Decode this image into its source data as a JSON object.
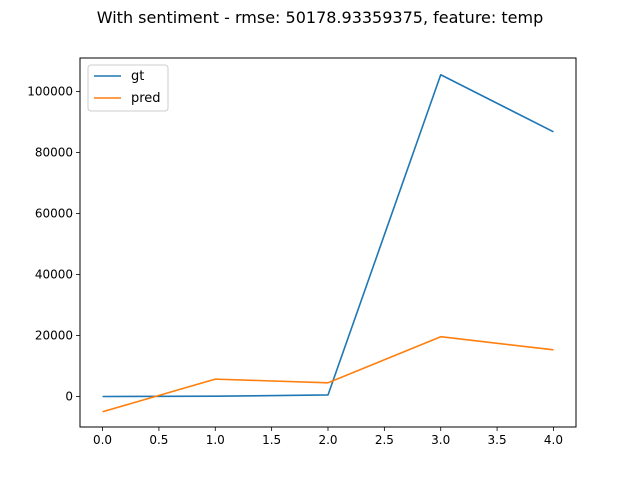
{
  "chart_data": {
    "type": "line",
    "title": "With sentiment - rmse: 50178.93359375, feature: temp",
    "xlabel": "",
    "ylabel": "",
    "x": [
      0,
      1,
      2,
      3,
      4
    ],
    "series": [
      {
        "name": "gt",
        "color": "#1f77b4",
        "values": [
          0,
          100,
          500,
          105500,
          86800
        ]
      },
      {
        "name": "pred",
        "color": "#ff7f0e",
        "values": [
          -5000,
          5700,
          4500,
          19600,
          15300
        ]
      }
    ],
    "xlim": [
      -0.2,
      4.2
    ],
    "ylim": [
      -10000,
      111000
    ],
    "xticks": [
      0.0,
      0.5,
      1.0,
      1.5,
      2.0,
      2.5,
      3.0,
      3.5,
      4.0
    ],
    "xtick_labels": [
      "0.0",
      "0.5",
      "1.0",
      "1.5",
      "2.0",
      "2.5",
      "3.0",
      "3.5",
      "4.0"
    ],
    "yticks": [
      0,
      20000,
      40000,
      60000,
      80000,
      100000
    ],
    "ytick_labels": [
      "0",
      "20000",
      "40000",
      "60000",
      "80000",
      "100000"
    ],
    "grid": false,
    "legend_position": "top-left"
  }
}
